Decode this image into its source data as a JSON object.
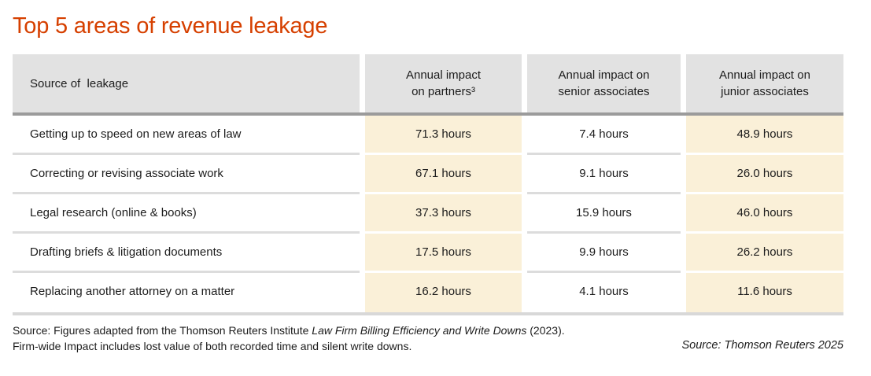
{
  "title": "Top 5 areas of revenue leakage",
  "colors": {
    "accent_orange": "#d64000",
    "header_bg": "#e2e2e2",
    "highlight_bg": "#faf0d8",
    "header_rule": "#9b9b9b",
    "row_rule": "#dcdcdc",
    "bottom_rule": "#d8d8d8",
    "text": "#1c1c1c"
  },
  "table": {
    "headers": {
      "source": "Source of  leakage",
      "partners": "Annual impact\non partners³",
      "senior": "Annual impact on\nsenior associates",
      "junior": "Annual impact on\njunior associates"
    },
    "rows": [
      {
        "source": "Getting up to speed on new areas of law",
        "partners": "71.3 hours",
        "senior": "7.4 hours",
        "junior": "48.9 hours"
      },
      {
        "source": "Correcting or revising associate work",
        "partners": "67.1 hours",
        "senior": "9.1 hours",
        "junior": "26.0 hours"
      },
      {
        "source": "Legal research (online & books)",
        "partners": "37.3 hours",
        "senior": "15.9 hours",
        "junior": "46.0 hours"
      },
      {
        "source": "Drafting briefs & litigation documents",
        "partners": "17.5 hours",
        "senior": "9.9 hours",
        "junior": "26.2 hours"
      },
      {
        "source": "Replacing another attorney on a matter",
        "partners": "16.2 hours",
        "senior": "4.1 hours",
        "junior": "11.6 hours"
      }
    ]
  },
  "footer": {
    "note_prefix": "Source: Figures adapted from the Thomson Reuters Institute ",
    "note_italic": "Law Firm Billing Efficiency and Write Downs",
    "note_suffix": " (2023). Firm-wide Impact includes lost value of both recorded time and silent write downs.",
    "source_right": "Source: Thomson Reuters 2025"
  },
  "chart_data": {
    "type": "table",
    "title": "Top 5 areas of revenue leakage",
    "unit": "hours per year",
    "columns": [
      "Source of leakage",
      "Annual impact on partners",
      "Annual impact on senior associates",
      "Annual impact on junior associates"
    ],
    "rows": [
      [
        "Getting up to speed on new areas of law",
        71.3,
        7.4,
        48.9
      ],
      [
        "Correcting or revising associate work",
        67.1,
        9.1,
        26.0
      ],
      [
        "Legal research (online & books)",
        37.3,
        15.9,
        46.0
      ],
      [
        "Drafting briefs & litigation documents",
        17.5,
        9.9,
        26.2
      ],
      [
        "Replacing another attorney on a matter",
        16.2,
        4.1,
        11.6
      ]
    ],
    "highlighted_columns": [
      "Annual impact on partners",
      "Annual impact on junior associates"
    ]
  }
}
